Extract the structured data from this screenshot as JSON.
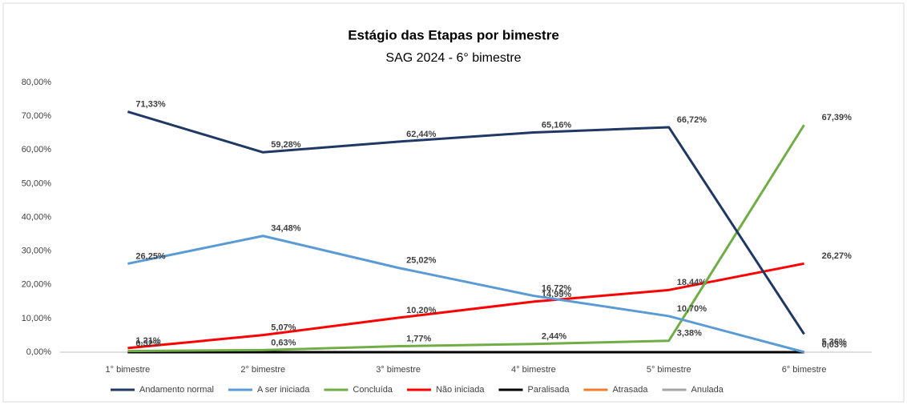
{
  "chart_data": {
    "type": "line",
    "title": "Estágio das Etapas por bimestre",
    "subtitle": "SAG 2024 - 6° bimestre",
    "categories": [
      "1° bimestre",
      "2° bimestre",
      "3° bimestre",
      "4° bimestre",
      "5° bimestre",
      "6° bimestre"
    ],
    "series": [
      {
        "name": "Andamento normal",
        "color": "#1f3864",
        "values": [
          71.33,
          59.28,
          62.44,
          65.16,
          66.72,
          5.36
        ],
        "value_labels": [
          "71,33%",
          "59,28%",
          "62,44%",
          "65,16%",
          "66,72%",
          "5,36%"
        ]
      },
      {
        "name": "A ser iniciada",
        "color": "#5b9bd5",
        "values": [
          26.25,
          34.48,
          25.02,
          16.72,
          10.7,
          0.03
        ],
        "value_labels": [
          "26,25%",
          "34,48%",
          "25,02%",
          "16,72%",
          "10,70%",
          "0,03%"
        ]
      },
      {
        "name": "Concluída",
        "color": "#70ad47",
        "values": [
          0.32,
          0.63,
          1.77,
          2.44,
          3.38,
          67.39
        ],
        "value_labels": [
          "0,32%",
          "0,63%",
          "1,77%",
          "2,44%",
          "3,38%",
          "67,39%"
        ]
      },
      {
        "name": "Não iniciada",
        "color": "#ff0000",
        "values": [
          1.21,
          5.07,
          10.2,
          14.99,
          18.44,
          26.27
        ],
        "value_labels": [
          "1,21%",
          "5,07%",
          "10,20%",
          "14,99%",
          "18,44%",
          "26,27%"
        ]
      },
      {
        "name": "Paralisada",
        "color": "#000000",
        "values": [
          0,
          0,
          0,
          0,
          0,
          0
        ]
      },
      {
        "name": "Atrasada",
        "color": "#ed7d31",
        "values": [
          0,
          0,
          0,
          0,
          0,
          0
        ]
      },
      {
        "name": "Anulada",
        "color": "#a5a5a5",
        "values": [
          0,
          0,
          0,
          0,
          0,
          0
        ]
      }
    ],
    "ylim": [
      0,
      80
    ],
    "yticks": [
      {
        "value": 0,
        "label": "0,00%"
      },
      {
        "value": 10,
        "label": "10,00%"
      },
      {
        "value": 20,
        "label": "20,00%"
      },
      {
        "value": 30,
        "label": "30,00%"
      },
      {
        "value": 40,
        "label": "40,00%"
      },
      {
        "value": 50,
        "label": "50,00%"
      },
      {
        "value": 60,
        "label": "60,00%"
      },
      {
        "value": 70,
        "label": "70,00%"
      },
      {
        "value": 80,
        "label": "80,00%"
      }
    ],
    "grid": false,
    "legend": "bottom"
  }
}
